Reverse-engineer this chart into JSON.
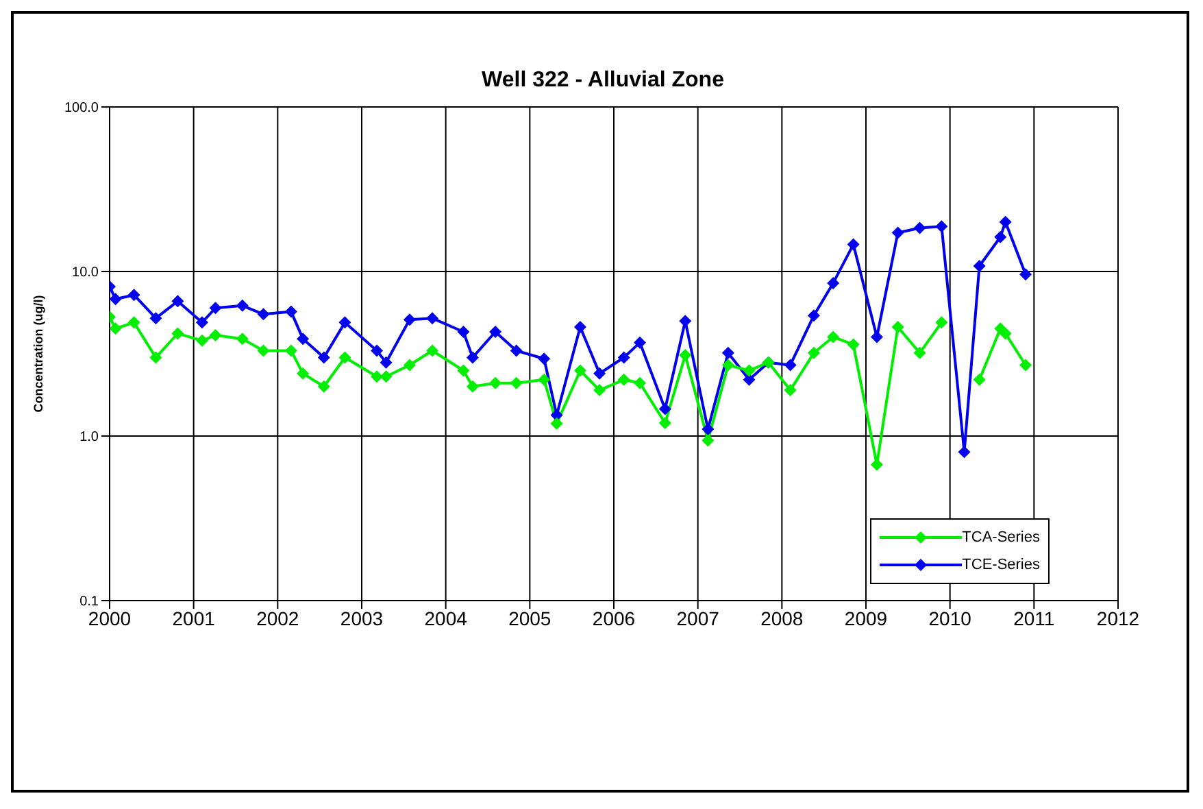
{
  "chart_data": {
    "type": "line",
    "title": "Well 322 - Alluvial Zone",
    "ylabel": "Concentration (ug/l)",
    "xlim": [
      2000,
      2012
    ],
    "xticks": [
      2000,
      2001,
      2002,
      2003,
      2004,
      2005,
      2006,
      2007,
      2008,
      2009,
      2010,
      2011,
      2012
    ],
    "ylim": [
      0.1,
      100
    ],
    "yticks": [
      {
        "value": 0.1,
        "label": "0.1"
      },
      {
        "value": 1,
        "label": "1.0"
      },
      {
        "value": 10,
        "label": "10.0"
      },
      {
        "value": 100,
        "label": "100.0"
      }
    ],
    "log": "y",
    "grid": true,
    "legend": "bottom right",
    "marker": "diamond",
    "line_style": "solid",
    "series": [
      {
        "name": "TCA-Series",
        "color": "#00ee00",
        "x": [
          2000.0,
          2000.07,
          2000.29,
          2000.55,
          2000.81,
          2001.1,
          2001.26,
          2001.58,
          2001.83,
          2002.16,
          2002.3,
          2002.55,
          2002.8,
          2003.18,
          2003.29,
          2003.57,
          2003.84,
          2004.21,
          2004.32,
          2004.59,
          2004.84,
          2005.17,
          2005.32,
          2005.6,
          2005.83,
          2006.12,
          2006.31,
          2006.61,
          2006.85,
          2007.12,
          2007.36,
          2007.61,
          2007.84,
          2008.1,
          2008.38,
          2008.61,
          2008.85,
          2009.13,
          2009.38,
          2009.64,
          2009.9,
          2010.17,
          2010.35,
          2010.6,
          2010.66,
          2010.9
        ],
        "values": [
          5.3,
          4.5,
          4.9,
          3.0,
          4.2,
          3.8,
          4.1,
          3.9,
          3.3,
          3.3,
          2.4,
          2.0,
          3.0,
          2.3,
          2.3,
          2.7,
          3.3,
          2.5,
          2.0,
          2.1,
          2.1,
          2.2,
          1.19,
          2.5,
          1.9,
          2.2,
          2.1,
          1.2,
          3.1,
          0.94,
          2.7,
          2.5,
          2.8,
          1.9,
          3.2,
          4.0,
          3.6,
          0.67,
          4.6,
          3.2,
          4.9,
          null,
          2.2,
          4.5,
          4.2,
          2.7
        ]
      },
      {
        "name": "TCE-Series",
        "color": "#0000ee",
        "x": [
          2000.0,
          2000.07,
          2000.29,
          2000.55,
          2000.81,
          2001.1,
          2001.26,
          2001.58,
          2001.83,
          2002.16,
          2002.3,
          2002.55,
          2002.8,
          2003.18,
          2003.29,
          2003.57,
          2003.84,
          2004.21,
          2004.32,
          2004.59,
          2004.84,
          2005.17,
          2005.32,
          2005.6,
          2005.83,
          2006.12,
          2006.31,
          2006.61,
          2006.85,
          2007.12,
          2007.36,
          2007.61,
          2007.84,
          2008.1,
          2008.38,
          2008.61,
          2008.85,
          2009.13,
          2009.38,
          2009.64,
          2009.9,
          2010.17,
          2010.35,
          2010.6,
          2010.66,
          2010.9
        ],
        "values": [
          8.1,
          6.8,
          7.2,
          5.2,
          6.6,
          4.9,
          6.0,
          6.2,
          5.5,
          5.7,
          3.9,
          3.0,
          4.9,
          3.3,
          2.8,
          5.1,
          5.2,
          4.3,
          3.0,
          4.3,
          3.3,
          2.95,
          1.34,
          4.6,
          2.4,
          3.0,
          3.7,
          1.46,
          5.0,
          1.1,
          3.2,
          2.2,
          2.8,
          2.7,
          5.4,
          8.5,
          14.6,
          4.0,
          17.2,
          18.4,
          18.8,
          0.8,
          10.8,
          16.2,
          20,
          9.6
        ]
      }
    ]
  }
}
